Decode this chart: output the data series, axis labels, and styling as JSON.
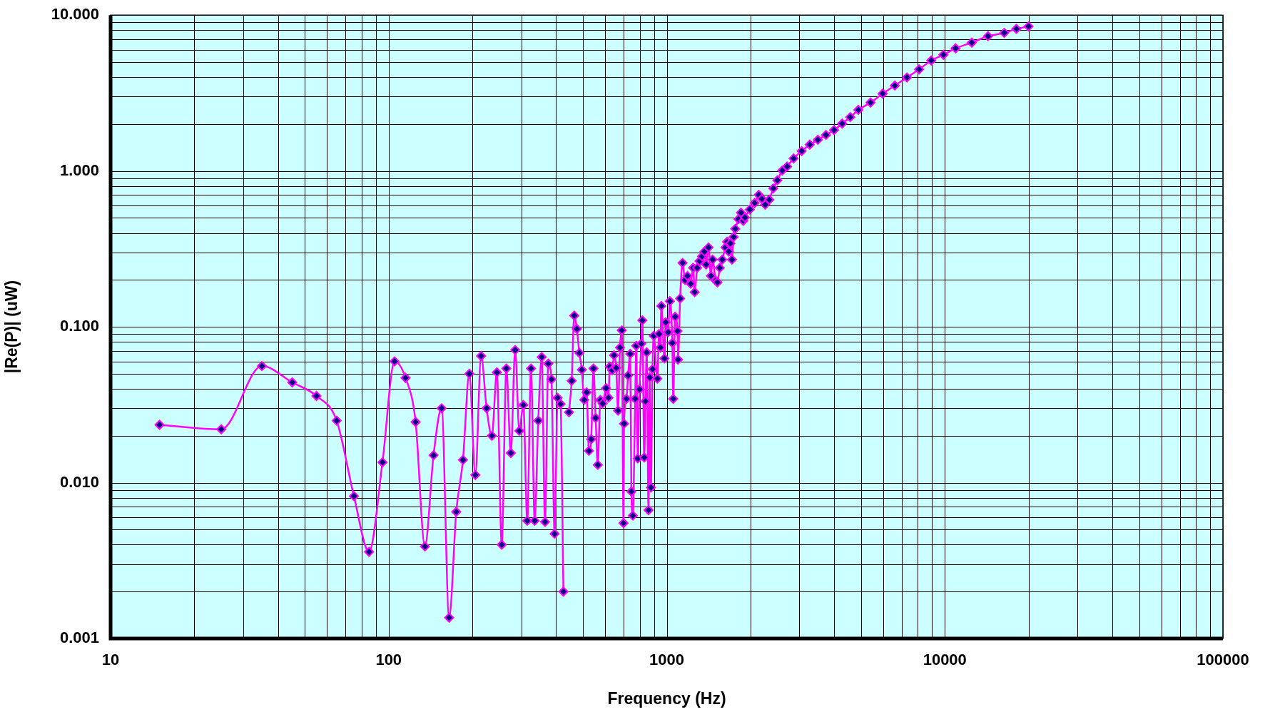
{
  "chart_data": {
    "type": "line",
    "xlabel": "Frequency (Hz)",
    "ylabel": "|Re(P)| (uW)",
    "log": "xy",
    "grid": true,
    "marker": "diamond",
    "line_style": "solid",
    "legend": false,
    "xlim": [
      10,
      100000
    ],
    "xticks": [
      10,
      100,
      1000,
      10000,
      100000
    ],
    "ylim": [
      0.001,
      10
    ],
    "yticks": [
      {
        "value": 0.001,
        "label": "0.001"
      },
      {
        "value": 0.01,
        "label": "0.010"
      },
      {
        "value": 0.1,
        "label": "0.100"
      },
      {
        "value": 1,
        "label": "1.000"
      },
      {
        "value": 10,
        "label": "10.000"
      }
    ],
    "series": [
      {
        "color": "#ff00ff",
        "x": [
          15,
          25,
          35,
          45,
          55,
          65,
          75,
          85,
          95,
          105,
          115,
          125,
          135,
          145,
          155,
          165,
          175,
          185,
          195,
          205,
          215,
          225,
          235,
          245,
          255,
          265,
          275,
          285,
          295,
          305,
          315,
          325,
          335,
          345,
          355,
          365,
          375,
          385,
          395,
          405,
          415,
          425,
          435,
          445,
          455,
          465,
          475,
          485,
          495,
          505,
          515,
          525,
          535,
          545,
          555,
          565,
          577,
          588,
          605,
          617,
          624,
          636,
          646,
          658,
          668,
          679,
          689,
          699,
          702,
          716,
          726,
          739,
          746,
          755,
          770,
          777,
          787,
          798,
          810,
          817,
          830,
          838,
          847,
          860,
          868,
          877,
          889,
          898,
          925,
          938,
          949,
          956,
          981,
          991,
          1011,
          1026,
          1047,
          1055,
          1072,
          1093,
          1098,
          1117,
          1140,
          1163,
          1187,
          1219,
          1244,
          1260,
          1286,
          1312,
          1339,
          1366,
          1385,
          1413,
          1442,
          1461,
          1500,
          1521,
          1551,
          1583,
          1626,
          1648,
          1671,
          1693,
          1716,
          1739,
          1763,
          1811,
          1848,
          1885,
          1910,
          1989,
          2070,
          2141,
          2199,
          2259,
          2337,
          2416,
          2499,
          2602,
          2709,
          2858,
          3056,
          3268,
          3494,
          3737,
          3996,
          4274,
          4570,
          4887,
          5405,
          5976,
          6609,
          7308,
          8081,
          8937,
          9882,
          10929,
          12501,
          14297,
          16353,
          18081,
          20000
        ],
        "values": [
          0.0235,
          0.022,
          0.056,
          0.044,
          0.036,
          0.025,
          0.0082,
          0.0036,
          0.0135,
          0.06,
          0.047,
          0.0245,
          0.0039,
          0.015,
          0.03,
          0.00136,
          0.0065,
          0.014,
          0.05,
          0.0112,
          0.065,
          0.03,
          0.02,
          0.051,
          0.004,
          0.054,
          0.0155,
          0.071,
          0.0215,
          0.0315,
          0.0057,
          0.054,
          0.0057,
          0.025,
          0.064,
          0.0056,
          0.058,
          0.046,
          0.0047,
          0.035,
          0.032,
          0.002,
          null,
          0.0283,
          0.045,
          0.118,
          0.097,
          0.068,
          0.053,
          0.034,
          0.038,
          0.016,
          0.019,
          0.054,
          0.026,
          0.013,
          0.0339,
          0.0322,
          0.0404,
          0.0351,
          0.0555,
          0.0526,
          0.0657,
          0.0545,
          0.029,
          0.0735,
          0.0949,
          0.0055,
          0.0239,
          0.0345,
          0.0487,
          0.0671,
          0.00877,
          0.00615,
          0.0345,
          0.0755,
          0.0143,
          0.0397,
          0.078,
          0.11,
          0.0145,
          0.0333,
          0.0685,
          0.00667,
          0.0474,
          0.00931,
          0.0535,
          0.0876,
          0.0465,
          0.09,
          0.0735,
          0.136,
          0.0627,
          0.107,
          0.0923,
          0.146,
          0.0788,
          0.0345,
          0.116,
          0.0939,
          0.0616,
          0.152,
          0.257,
          0.2,
          0.212,
          0.189,
          0.239,
          0.167,
          0.239,
          0.264,
          0.283,
          0.304,
          0.251,
          0.323,
          0.212,
          0.27,
          0.198,
          0.193,
          0.239,
          0.27,
          0.323,
          0.351,
          0.304,
          0.343,
          0.27,
          0.377,
          0.425,
          0.491,
          0.54,
          0.479,
          0.503,
          0.566,
          0.623,
          0.703,
          0.662,
          0.608,
          0.654,
          0.773,
          0.872,
          1.006,
          1.068,
          1.203,
          1.341,
          1.475,
          1.585,
          1.703,
          1.83,
          2.013,
          2.215,
          2.467,
          2.748,
          3.134,
          3.532,
          3.981,
          4.487,
          5.117,
          5.564,
          6.124,
          6.66,
          7.33,
          7.69,
          8.16,
          8.46
        ]
      }
    ]
  }
}
